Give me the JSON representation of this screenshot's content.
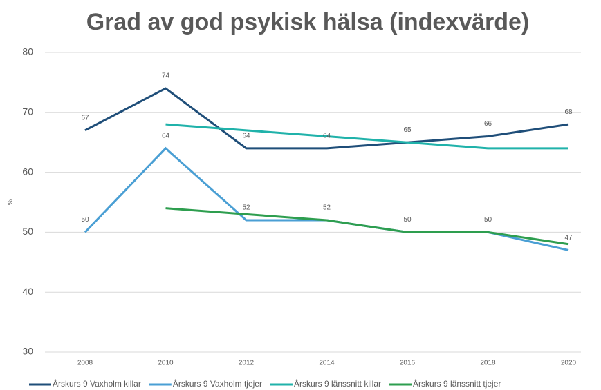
{
  "chart_data": {
    "type": "line",
    "title": "Grad av god psykisk hälsa (indexvärde)",
    "y_label": "%",
    "categories": [
      "2008",
      "2010",
      "2012",
      "2014",
      "2016",
      "2018",
      "2020"
    ],
    "series": [
      {
        "name": "Årskurs 9 Vaxholm killar",
        "color": "#1f4e79",
        "show_labels": true,
        "values": [
          67,
          74,
          64,
          64,
          65,
          66,
          68
        ]
      },
      {
        "name": "Årskurs 9 Vaxholm tjejer",
        "color": "#4a9fd4",
        "show_labels": true,
        "values": [
          50,
          64,
          52,
          52,
          50,
          50,
          47
        ]
      },
      {
        "name": "Årskurs 9 länssnitt killar",
        "color": "#20b2aa",
        "show_labels": false,
        "values": [
          null,
          68,
          67,
          66,
          65,
          64,
          64
        ]
      },
      {
        "name": "Årskurs 9 länssnitt tjejer",
        "color": "#2e9e4f",
        "show_labels": false,
        "values": [
          null,
          54,
          53,
          52,
          50,
          50,
          48
        ]
      }
    ],
    "ylim": [
      30,
      80
    ],
    "yticks": [
      30,
      40,
      50,
      60,
      70,
      80
    ],
    "grid": true,
    "legend": "bottom"
  }
}
